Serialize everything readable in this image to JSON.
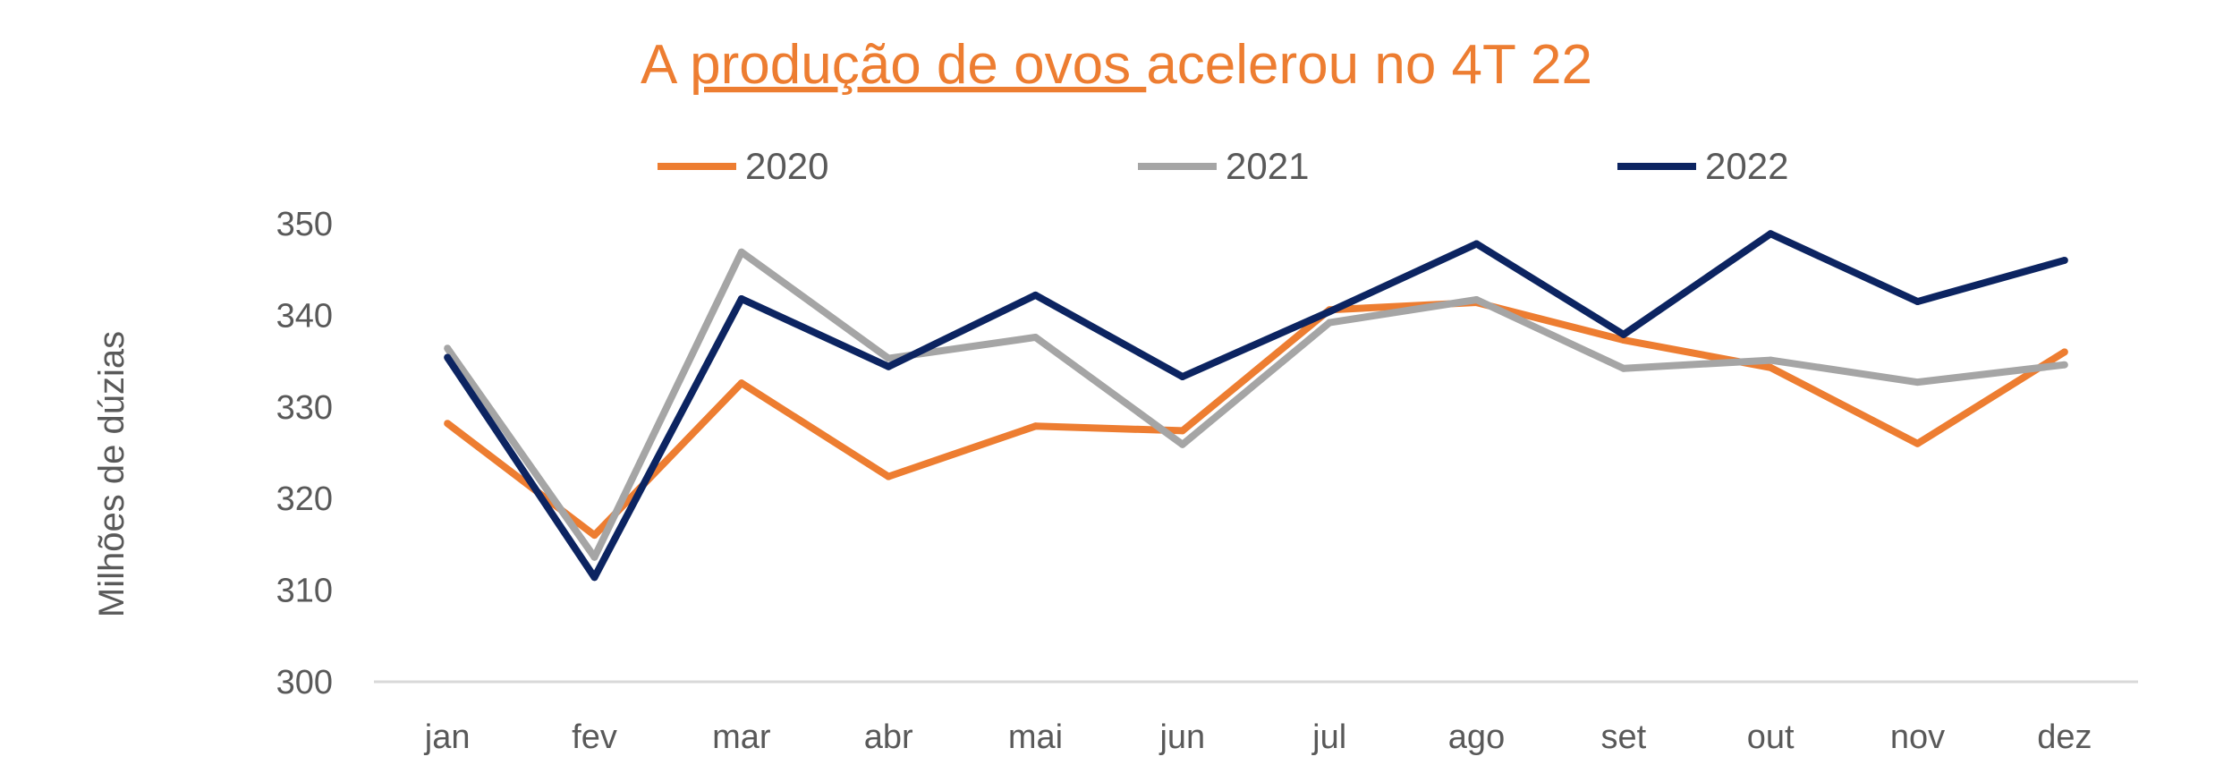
{
  "colors": {
    "title": "#ED7D31",
    "axis_text": "#595959",
    "baseline": "#D9D9D9"
  },
  "chart_data": {
    "type": "line",
    "title": {
      "prefix": "A ",
      "underlined": "produção de ovos ",
      "suffix": "acelerou no 4T 22"
    },
    "xlabel": "",
    "ylabel": "Milhões de dúzias",
    "ylim": [
      300,
      350
    ],
    "yticks": [
      "300",
      "310",
      "320",
      "330",
      "340",
      "350"
    ],
    "grid": false,
    "legend_position": "top",
    "categories": [
      "jan",
      "fev",
      "mar",
      "abr",
      "mai",
      "jun",
      "jul",
      "ago",
      "set",
      "out",
      "nov",
      "dez"
    ],
    "series": [
      {
        "name": "2020",
        "color": "#ED7D31",
        "values": [
          328.2,
          316.0,
          332.6,
          322.4,
          327.9,
          327.4,
          340.6,
          341.4,
          337.3,
          334.3,
          326.0,
          336.0
        ]
      },
      {
        "name": "2021",
        "color": "#A5A5A5",
        "values": [
          336.4,
          313.6,
          346.9,
          335.3,
          337.6,
          325.9,
          339.2,
          341.7,
          334.2,
          335.1,
          332.7,
          334.6
        ]
      },
      {
        "name": "2022",
        "color": "#0C2461",
        "values": [
          335.4,
          311.4,
          341.8,
          334.4,
          342.2,
          333.3,
          340.4,
          347.8,
          337.9,
          348.9,
          341.5,
          346.0
        ]
      }
    ]
  }
}
